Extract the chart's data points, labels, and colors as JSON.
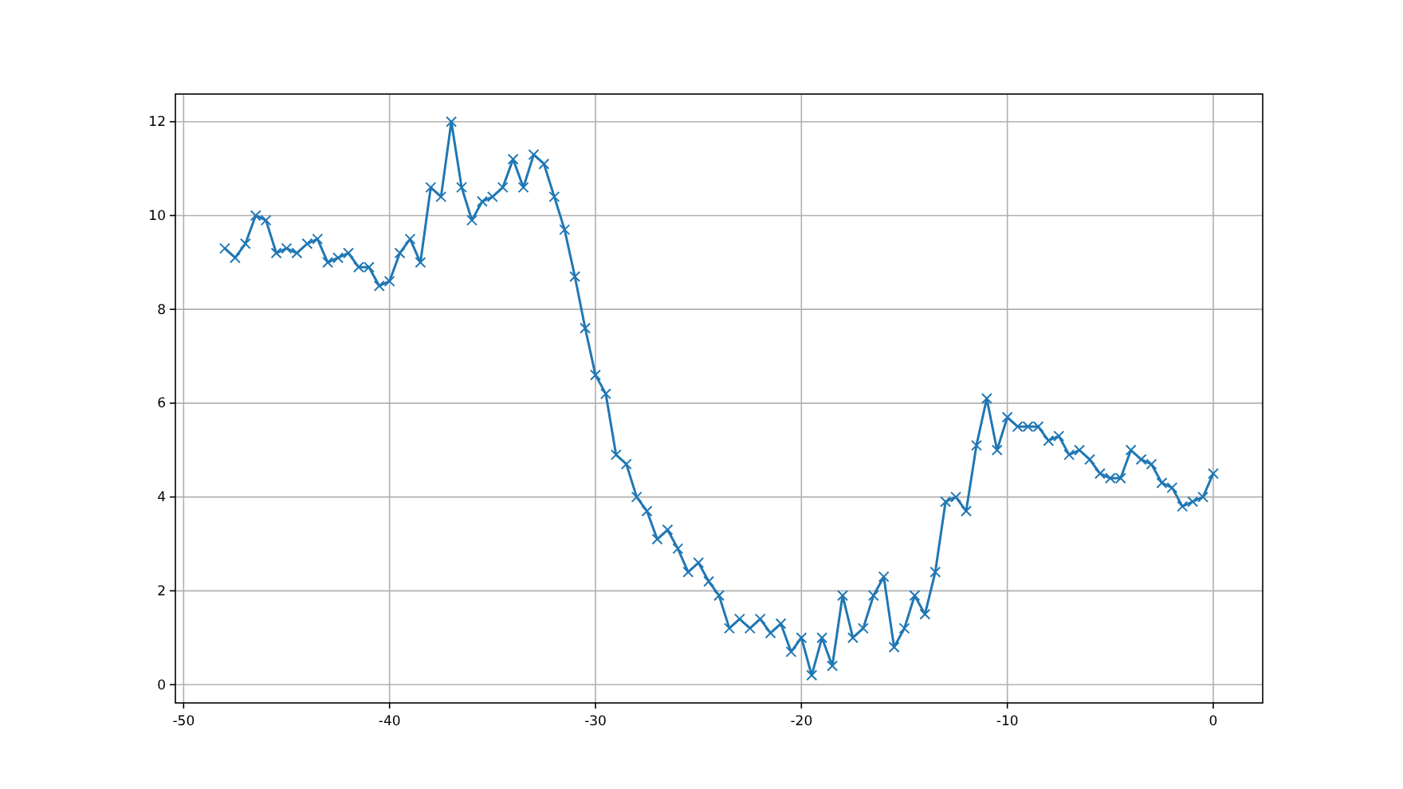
{
  "chart_data": {
    "type": "line",
    "marker": "cross",
    "grid": true,
    "x": [
      -48,
      -47.5,
      -47,
      -46.5,
      -46,
      -45.5,
      -45,
      -44.5,
      -44,
      -43.5,
      -43,
      -42.5,
      -42,
      -41.5,
      -41,
      -40.5,
      -40,
      -39.5,
      -39,
      -38.5,
      -38,
      -37.5,
      -37,
      -36.5,
      -36,
      -35.5,
      -35,
      -34.5,
      -34,
      -33.5,
      -33,
      -32.5,
      -32,
      -31.5,
      -31,
      -30.5,
      -30,
      -29.5,
      -29,
      -28.5,
      -28,
      -27.5,
      -27,
      -26.5,
      -26,
      -25.5,
      -25,
      -24.5,
      -24,
      -23.5,
      -23,
      -22.5,
      -22,
      -21.5,
      -21,
      -20.5,
      -20,
      -19.5,
      -19,
      -18.5,
      -18,
      -17.5,
      -17,
      -16.5,
      -16,
      -15.5,
      -15,
      -14.5,
      -14,
      -13.5,
      -13,
      -12.5,
      -12,
      -11.5,
      -11,
      -10.5,
      -10,
      -9.5,
      -9,
      -8.5,
      -8,
      -7.5,
      -7,
      -6.5,
      -6,
      -5.5,
      -5,
      -4.5,
      -4,
      -3.5,
      -3,
      -2.5,
      -2,
      -1.5,
      -1,
      -0.5,
      0
    ],
    "series": [
      {
        "color": "#1f77b4",
        "values": [
          9.3,
          9.1,
          9.4,
          10.0,
          9.9,
          9.2,
          9.3,
          9.2,
          9.4,
          9.5,
          9.0,
          9.1,
          9.2,
          8.9,
          8.9,
          8.5,
          8.6,
          9.2,
          9.5,
          9.0,
          10.6,
          10.4,
          12.0,
          10.6,
          9.9,
          10.3,
          10.4,
          10.6,
          11.2,
          10.6,
          11.3,
          11.1,
          10.4,
          9.7,
          8.7,
          7.6,
          6.6,
          6.2,
          4.9,
          4.7,
          4.0,
          3.7,
          3.1,
          3.3,
          2.9,
          2.4,
          2.6,
          2.2,
          1.9,
          1.2,
          1.4,
          1.2,
          1.4,
          1.1,
          1.3,
          0.7,
          1.0,
          0.2,
          1.0,
          0.4,
          1.9,
          1.0,
          1.2,
          1.9,
          2.3,
          0.8,
          1.2,
          1.9,
          1.5,
          2.4,
          3.9,
          4.0,
          3.7,
          5.1,
          6.1,
          5.0,
          5.7,
          5.5,
          5.5,
          5.5,
          5.2,
          5.3,
          4.9,
          5.0,
          4.8,
          4.5,
          4.4,
          4.4,
          5.0,
          4.8,
          4.7,
          4.3,
          4.2,
          3.8,
          3.9,
          4.0,
          4.5
        ]
      }
    ],
    "xlim": [
      -50.4,
      2.4
    ],
    "ylim": [
      -0.39,
      12.59
    ],
    "xticks": [
      -50,
      -40,
      -30,
      -20,
      -10,
      0
    ],
    "yticks": [
      0,
      2,
      4,
      6,
      8,
      10,
      12
    ]
  }
}
